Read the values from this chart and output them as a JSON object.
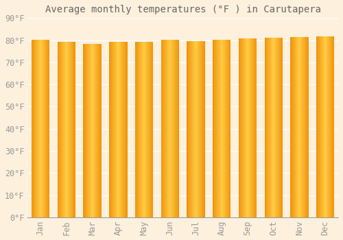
{
  "title": "Average monthly temperatures (°F ) in Carutapera",
  "months": [
    "Jan",
    "Feb",
    "Mar",
    "Apr",
    "May",
    "Jun",
    "Jul",
    "Aug",
    "Sep",
    "Oct",
    "Nov",
    "Dec"
  ],
  "values": [
    80.1,
    79.3,
    78.4,
    79.3,
    79.1,
    80.1,
    79.5,
    80.1,
    80.8,
    81.0,
    81.3,
    81.7
  ],
  "bar_color_center": "#FFCC44",
  "bar_color_edge": "#F0920A",
  "background_color": "#FDF0DC",
  "grid_color": "#FFFFFF",
  "text_color": "#999999",
  "ylim": [
    0,
    90
  ],
  "yticks": [
    0,
    10,
    20,
    30,
    40,
    50,
    60,
    70,
    80,
    90
  ],
  "title_fontsize": 10,
  "tick_fontsize": 8.5,
  "bar_width": 0.7
}
